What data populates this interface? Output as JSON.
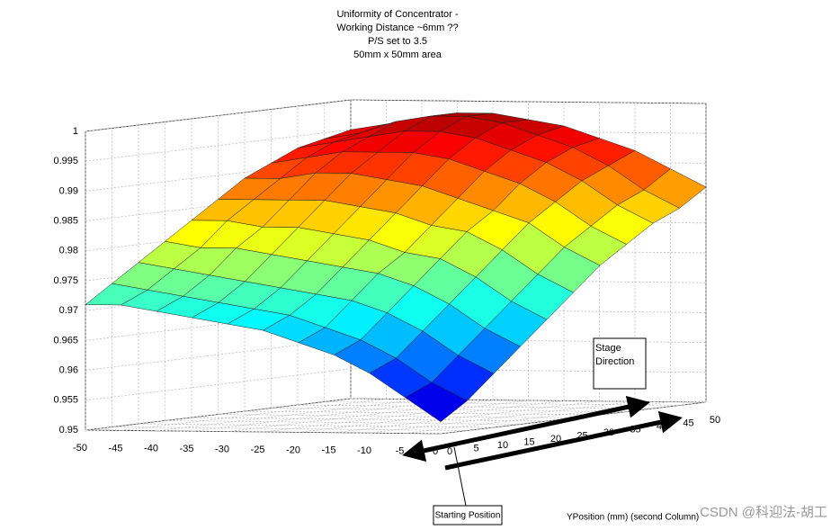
{
  "chart_data": {
    "type": "surface",
    "title": [
      "Uniformity of Concentrator  -",
      "Working Distance ~6mm ??",
      "P/S set to 3.5",
      "50mm x 50mm area"
    ],
    "y_label": "YPosition (mm) (second Column)",
    "annotations": [
      "Stage Direction",
      "Starting Position"
    ],
    "watermark": "CSDN @科迎法-胡工",
    "colormap": "jet",
    "grid": true,
    "x": [
      -50,
      -45,
      -40,
      -35,
      -30,
      -25,
      -20,
      -15,
      -10,
      -5,
      0
    ],
    "y": [
      0,
      5,
      10,
      15,
      20,
      25,
      30,
      35,
      40,
      45,
      50
    ],
    "z": [
      [
        0.971,
        0.974,
        0.977,
        0.98,
        0.983,
        0.986,
        0.989,
        0.991,
        0.993,
        0.994,
        0.995
      ],
      [
        0.971,
        0.973,
        0.976,
        0.979,
        0.983,
        0.986,
        0.989,
        0.992,
        0.994,
        0.995,
        0.996
      ],
      [
        0.97,
        0.972,
        0.975,
        0.979,
        0.982,
        0.986,
        0.99,
        0.993,
        0.995,
        0.997,
        0.997
      ],
      [
        0.969,
        0.971,
        0.974,
        0.978,
        0.982,
        0.986,
        0.99,
        0.993,
        0.996,
        0.998,
        0.998
      ],
      [
        0.968,
        0.97,
        0.973,
        0.977,
        0.981,
        0.985,
        0.989,
        0.993,
        0.996,
        0.998,
        0.998
      ],
      [
        0.967,
        0.969,
        0.972,
        0.976,
        0.98,
        0.984,
        0.988,
        0.992,
        0.995,
        0.997,
        0.997
      ],
      [
        0.965,
        0.967,
        0.971,
        0.975,
        0.978,
        0.982,
        0.986,
        0.99,
        0.993,
        0.995,
        0.996
      ],
      [
        0.963,
        0.965,
        0.969,
        0.973,
        0.977,
        0.981,
        0.984,
        0.988,
        0.991,
        0.993,
        0.994
      ],
      [
        0.96,
        0.962,
        0.966,
        0.97,
        0.974,
        0.978,
        0.982,
        0.985,
        0.988,
        0.99,
        0.992
      ],
      [
        0.956,
        0.958,
        0.962,
        0.966,
        0.97,
        0.974,
        0.978,
        0.981,
        0.984,
        0.986,
        0.989
      ],
      [
        0.952,
        0.955,
        0.959,
        0.963,
        0.967,
        0.971,
        0.975,
        0.978,
        0.981,
        0.983,
        0.986
      ]
    ],
    "xlim": [
      -50,
      0
    ],
    "ylim": [
      0,
      50
    ],
    "zlim": [
      0.95,
      1
    ],
    "xticks": [
      -50,
      -45,
      -40,
      -35,
      -30,
      -25,
      -20,
      -15,
      -10,
      -5,
      0
    ],
    "yticks": [
      0,
      5,
      10,
      15,
      20,
      25,
      30,
      35,
      40,
      45,
      50
    ],
    "zticks": [
      0.95,
      0.955,
      0.96,
      0.965,
      0.97,
      0.975,
      0.98,
      0.985,
      0.99,
      0.995,
      1
    ]
  }
}
